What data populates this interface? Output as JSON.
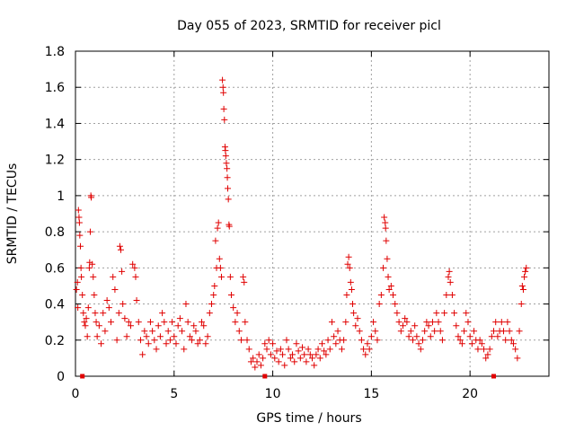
{
  "chart_data": {
    "type": "scatter",
    "title": "Day 055 of 2023, SRMTID for receiver picl",
    "xlabel": "GPS time / hours",
    "ylabel": "SRMTID / TECUs",
    "xlim": [
      0,
      24
    ],
    "ylim": [
      0,
      1.8
    ],
    "xticks": [
      0,
      5,
      10,
      15,
      20
    ],
    "xtick_labels": [
      "0",
      "5",
      "10",
      "15",
      "20"
    ],
    "yticks": [
      0,
      0.2,
      0.4,
      0.6,
      0.8,
      1,
      1.2,
      1.4,
      1.6,
      1.8
    ],
    "ytick_labels": [
      "0",
      "0.2",
      "0.4",
      "0.6",
      "0.8",
      "1",
      "1.2",
      "1.4",
      "1.6",
      "1.8"
    ],
    "grid": true,
    "marker": "+",
    "colors": {
      "series": "#e00000",
      "grid": "#a0a0a0",
      "axis": "#000000"
    },
    "series": [
      {
        "name": "SRMTID",
        "points": [
          [
            0.05,
            0.48
          ],
          [
            0.1,
            0.52
          ],
          [
            0.12,
            0.38
          ],
          [
            0.15,
            0.92
          ],
          [
            0.18,
            0.88
          ],
          [
            0.2,
            0.85
          ],
          [
            0.22,
            0.78
          ],
          [
            0.25,
            0.72
          ],
          [
            0.28,
            0.6
          ],
          [
            0.3,
            0.55
          ],
          [
            0.35,
            0.45
          ],
          [
            0.4,
            0.35
          ],
          [
            0.45,
            0.3
          ],
          [
            0.5,
            0.28
          ],
          [
            0.55,
            0.32
          ],
          [
            0.6,
            0.22
          ],
          [
            0.65,
            0.38
          ],
          [
            0.7,
            0.6
          ],
          [
            0.72,
            0.63
          ],
          [
            0.75,
            0.8
          ],
          [
            0.78,
            1.0
          ],
          [
            0.8,
            0.99
          ],
          [
            0.85,
            0.62
          ],
          [
            0.9,
            0.55
          ],
          [
            0.95,
            0.45
          ],
          [
            1.0,
            0.35
          ],
          [
            1.05,
            0.3
          ],
          [
            1.1,
            0.22
          ],
          [
            1.2,
            0.28
          ],
          [
            1.3,
            0.18
          ],
          [
            1.4,
            0.35
          ],
          [
            1.5,
            0.25
          ],
          [
            1.6,
            0.42
          ],
          [
            1.7,
            0.38
          ],
          [
            1.8,
            0.3
          ],
          [
            1.9,
            0.55
          ],
          [
            2.0,
            0.48
          ],
          [
            2.1,
            0.2
          ],
          [
            2.2,
            0.35
          ],
          [
            2.25,
            0.72
          ],
          [
            2.3,
            0.7
          ],
          [
            2.35,
            0.58
          ],
          [
            2.4,
            0.4
          ],
          [
            2.5,
            0.32
          ],
          [
            2.6,
            0.22
          ],
          [
            2.7,
            0.3
          ],
          [
            2.8,
            0.28
          ],
          [
            2.9,
            0.62
          ],
          [
            3.0,
            0.6
          ],
          [
            3.05,
            0.55
          ],
          [
            3.1,
            0.42
          ],
          [
            3.2,
            0.3
          ],
          [
            3.3,
            0.2
          ],
          [
            3.4,
            0.12
          ],
          [
            3.5,
            0.25
          ],
          [
            3.6,
            0.22
          ],
          [
            3.7,
            0.18
          ],
          [
            3.8,
            0.3
          ],
          [
            3.9,
            0.25
          ],
          [
            4.0,
            0.2
          ],
          [
            4.1,
            0.15
          ],
          [
            4.2,
            0.28
          ],
          [
            4.3,
            0.22
          ],
          [
            4.4,
            0.35
          ],
          [
            4.5,
            0.3
          ],
          [
            4.6,
            0.18
          ],
          [
            4.7,
            0.25
          ],
          [
            4.8,
            0.2
          ],
          [
            4.9,
            0.3
          ],
          [
            5.0,
            0.22
          ],
          [
            5.1,
            0.18
          ],
          [
            5.2,
            0.28
          ],
          [
            5.3,
            0.32
          ],
          [
            5.4,
            0.25
          ],
          [
            5.5,
            0.15
          ],
          [
            5.6,
            0.4
          ],
          [
            5.7,
            0.3
          ],
          [
            5.8,
            0.22
          ],
          [
            5.9,
            0.2
          ],
          [
            6.0,
            0.28
          ],
          [
            6.1,
            0.25
          ],
          [
            6.2,
            0.18
          ],
          [
            6.3,
            0.2
          ],
          [
            6.4,
            0.3
          ],
          [
            6.5,
            0.28
          ],
          [
            6.6,
            0.18
          ],
          [
            6.7,
            0.22
          ],
          [
            6.8,
            0.35
          ],
          [
            6.9,
            0.4
          ],
          [
            7.0,
            0.45
          ],
          [
            7.05,
            0.5
          ],
          [
            7.1,
            0.75
          ],
          [
            7.15,
            0.6
          ],
          [
            7.2,
            0.82
          ],
          [
            7.25,
            0.85
          ],
          [
            7.3,
            0.65
          ],
          [
            7.35,
            0.6
          ],
          [
            7.4,
            0.55
          ],
          [
            7.45,
            1.64
          ],
          [
            7.48,
            1.6
          ],
          [
            7.5,
            1.57
          ],
          [
            7.52,
            1.48
          ],
          [
            7.55,
            1.42
          ],
          [
            7.58,
            1.27
          ],
          [
            7.6,
            1.25
          ],
          [
            7.62,
            1.22
          ],
          [
            7.65,
            1.18
          ],
          [
            7.68,
            1.15
          ],
          [
            7.7,
            1.1
          ],
          [
            7.72,
            1.04
          ],
          [
            7.75,
            0.98
          ],
          [
            7.78,
            0.84
          ],
          [
            7.8,
            0.83
          ],
          [
            7.85,
            0.55
          ],
          [
            7.9,
            0.45
          ],
          [
            8.0,
            0.38
          ],
          [
            8.1,
            0.3
          ],
          [
            8.2,
            0.35
          ],
          [
            8.3,
            0.25
          ],
          [
            8.4,
            0.2
          ],
          [
            8.5,
            0.55
          ],
          [
            8.55,
            0.52
          ],
          [
            8.6,
            0.3
          ],
          [
            8.7,
            0.2
          ],
          [
            8.8,
            0.15
          ],
          [
            8.9,
            0.08
          ],
          [
            9.0,
            0.1
          ],
          [
            9.1,
            0.05
          ],
          [
            9.2,
            0.08
          ],
          [
            9.3,
            0.12
          ],
          [
            9.4,
            0.06
          ],
          [
            9.5,
            0.1
          ],
          [
            9.6,
            0.18
          ],
          [
            9.7,
            0.15
          ],
          [
            9.8,
            0.2
          ],
          [
            9.9,
            0.12
          ],
          [
            10.0,
            0.18
          ],
          [
            10.1,
            0.1
          ],
          [
            10.2,
            0.14
          ],
          [
            10.3,
            0.08
          ],
          [
            10.4,
            0.15
          ],
          [
            10.5,
            0.12
          ],
          [
            10.6,
            0.06
          ],
          [
            10.7,
            0.2
          ],
          [
            10.8,
            0.15
          ],
          [
            10.9,
            0.1
          ],
          [
            11.0,
            0.12
          ],
          [
            11.1,
            0.08
          ],
          [
            11.2,
            0.18
          ],
          [
            11.3,
            0.14
          ],
          [
            11.4,
            0.1
          ],
          [
            11.5,
            0.16
          ],
          [
            11.6,
            0.12
          ],
          [
            11.7,
            0.08
          ],
          [
            11.8,
            0.15
          ],
          [
            11.9,
            0.12
          ],
          [
            12.0,
            0.1
          ],
          [
            12.1,
            0.06
          ],
          [
            12.2,
            0.12
          ],
          [
            12.3,
            0.15
          ],
          [
            12.4,
            0.1
          ],
          [
            12.5,
            0.18
          ],
          [
            12.6,
            0.14
          ],
          [
            12.7,
            0.12
          ],
          [
            12.8,
            0.2
          ],
          [
            12.9,
            0.15
          ],
          [
            13.0,
            0.3
          ],
          [
            13.1,
            0.22
          ],
          [
            13.2,
            0.18
          ],
          [
            13.3,
            0.25
          ],
          [
            13.4,
            0.2
          ],
          [
            13.5,
            0.15
          ],
          [
            13.6,
            0.2
          ],
          [
            13.7,
            0.3
          ],
          [
            13.75,
            0.45
          ],
          [
            13.8,
            0.62
          ],
          [
            13.85,
            0.66
          ],
          [
            13.9,
            0.6
          ],
          [
            13.95,
            0.52
          ],
          [
            14.0,
            0.48
          ],
          [
            14.05,
            0.4
          ],
          [
            14.1,
            0.35
          ],
          [
            14.2,
            0.28
          ],
          [
            14.3,
            0.32
          ],
          [
            14.4,
            0.25
          ],
          [
            14.5,
            0.2
          ],
          [
            14.6,
            0.15
          ],
          [
            14.7,
            0.12
          ],
          [
            14.8,
            0.18
          ],
          [
            14.9,
            0.15
          ],
          [
            15.0,
            0.22
          ],
          [
            15.1,
            0.3
          ],
          [
            15.2,
            0.25
          ],
          [
            15.3,
            0.2
          ],
          [
            15.4,
            0.4
          ],
          [
            15.5,
            0.45
          ],
          [
            15.6,
            0.6
          ],
          [
            15.65,
            0.88
          ],
          [
            15.7,
            0.85
          ],
          [
            15.72,
            0.82
          ],
          [
            15.75,
            0.75
          ],
          [
            15.8,
            0.65
          ],
          [
            15.85,
            0.55
          ],
          [
            15.9,
            0.48
          ],
          [
            16.0,
            0.5
          ],
          [
            16.1,
            0.45
          ],
          [
            16.2,
            0.4
          ],
          [
            16.3,
            0.35
          ],
          [
            16.4,
            0.3
          ],
          [
            16.5,
            0.25
          ],
          [
            16.6,
            0.28
          ],
          [
            16.7,
            0.32
          ],
          [
            16.8,
            0.3
          ],
          [
            16.9,
            0.22
          ],
          [
            17.0,
            0.25
          ],
          [
            17.1,
            0.2
          ],
          [
            17.2,
            0.28
          ],
          [
            17.3,
            0.22
          ],
          [
            17.4,
            0.18
          ],
          [
            17.5,
            0.15
          ],
          [
            17.6,
            0.2
          ],
          [
            17.7,
            0.25
          ],
          [
            17.8,
            0.3
          ],
          [
            17.9,
            0.28
          ],
          [
            18.0,
            0.22
          ],
          [
            18.1,
            0.3
          ],
          [
            18.2,
            0.25
          ],
          [
            18.3,
            0.35
          ],
          [
            18.4,
            0.3
          ],
          [
            18.5,
            0.25
          ],
          [
            18.6,
            0.2
          ],
          [
            18.7,
            0.35
          ],
          [
            18.8,
            0.45
          ],
          [
            18.9,
            0.55
          ],
          [
            18.95,
            0.58
          ],
          [
            19.0,
            0.52
          ],
          [
            19.1,
            0.45
          ],
          [
            19.2,
            0.35
          ],
          [
            19.3,
            0.28
          ],
          [
            19.4,
            0.22
          ],
          [
            19.5,
            0.2
          ],
          [
            19.6,
            0.18
          ],
          [
            19.7,
            0.25
          ],
          [
            19.8,
            0.35
          ],
          [
            19.9,
            0.3
          ],
          [
            20.0,
            0.22
          ],
          [
            20.1,
            0.18
          ],
          [
            20.2,
            0.25
          ],
          [
            20.3,
            0.2
          ],
          [
            20.4,
            0.15
          ],
          [
            20.5,
            0.2
          ],
          [
            20.6,
            0.18
          ],
          [
            20.7,
            0.15
          ],
          [
            20.8,
            0.1
          ],
          [
            20.9,
            0.12
          ],
          [
            21.0,
            0.15
          ],
          [
            21.1,
            0.22
          ],
          [
            21.2,
            0.25
          ],
          [
            21.3,
            0.3
          ],
          [
            21.4,
            0.22
          ],
          [
            21.5,
            0.25
          ],
          [
            21.6,
            0.3
          ],
          [
            21.7,
            0.25
          ],
          [
            21.8,
            0.2
          ],
          [
            21.9,
            0.3
          ],
          [
            22.0,
            0.25
          ],
          [
            22.1,
            0.2
          ],
          [
            22.2,
            0.18
          ],
          [
            22.3,
            0.15
          ],
          [
            22.4,
            0.1
          ],
          [
            22.5,
            0.25
          ],
          [
            22.6,
            0.4
          ],
          [
            22.65,
            0.5
          ],
          [
            22.7,
            0.48
          ],
          [
            22.75,
            0.55
          ],
          [
            22.8,
            0.58
          ],
          [
            22.85,
            0.6
          ]
        ]
      }
    ],
    "markers_on_axis": [
      0.35,
      9.6,
      21.2
    ]
  }
}
